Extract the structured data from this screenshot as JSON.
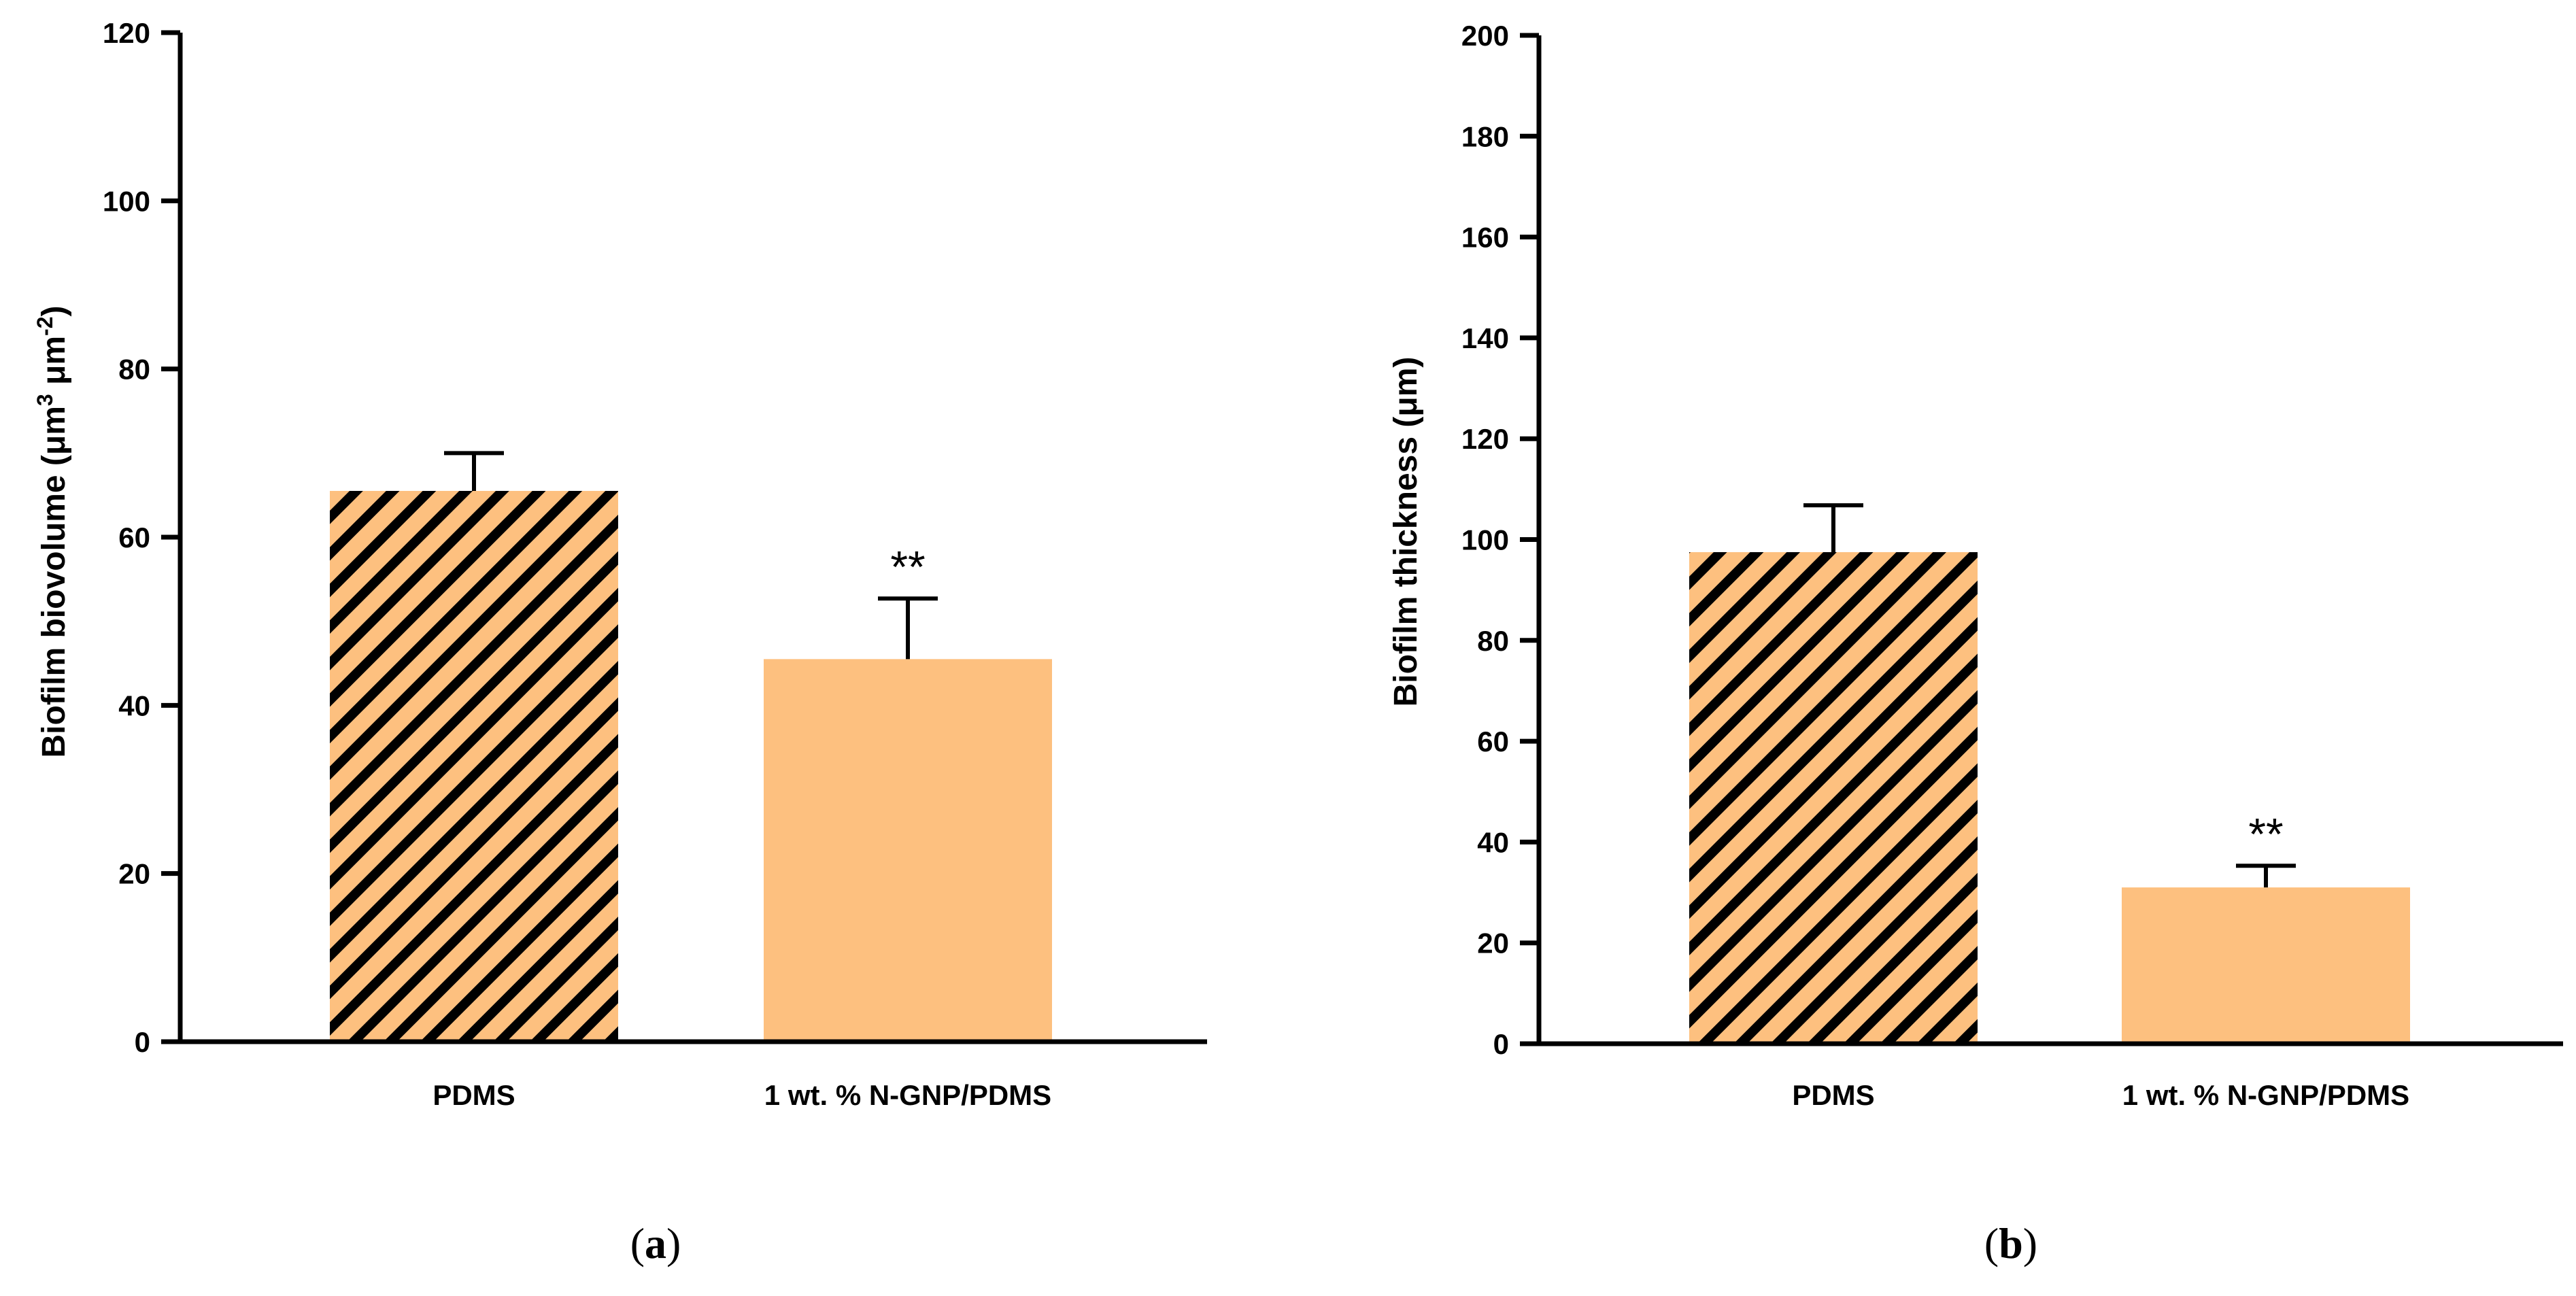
{
  "chart_data": [
    {
      "type": "bar",
      "panel_label": "a",
      "categories": [
        "PDMS",
        "1 wt. % N-GNP/PDMS"
      ],
      "values": [
        65.5,
        45.5
      ],
      "errors": [
        4.5,
        7.2
      ],
      "significance": [
        "",
        "**"
      ],
      "bar_patterns": [
        "hatched",
        "solid"
      ],
      "ylabel": "Biofilm biovolume (μm3 μm-2)",
      "ylabel_parts": {
        "pre": "Biofilm biovolume (μm",
        "sup1": "3",
        "mid": " μm",
        "sup2": "-2",
        "post": ")"
      },
      "ylim": [
        0,
        120
      ],
      "yticks": [
        0,
        20,
        40,
        60,
        80,
        100,
        120
      ],
      "grid": false
    },
    {
      "type": "bar",
      "panel_label": "b",
      "categories": [
        "PDMS",
        "1 wt. % N-GNP/PDMS"
      ],
      "values": [
        97.5,
        31
      ],
      "errors": [
        9.3,
        4.3
      ],
      "significance": [
        "",
        "**"
      ],
      "bar_patterns": [
        "hatched",
        "solid"
      ],
      "ylabel": "Biofilm thickness (μm)",
      "ylim": [
        0,
        200
      ],
      "yticks": [
        0,
        20,
        40,
        60,
        80,
        100,
        120,
        140,
        160,
        180,
        200
      ],
      "grid": false
    }
  ],
  "colors": {
    "bar_fill": "#FDC07F",
    "hatch": "#000000",
    "axis": "#000000"
  }
}
